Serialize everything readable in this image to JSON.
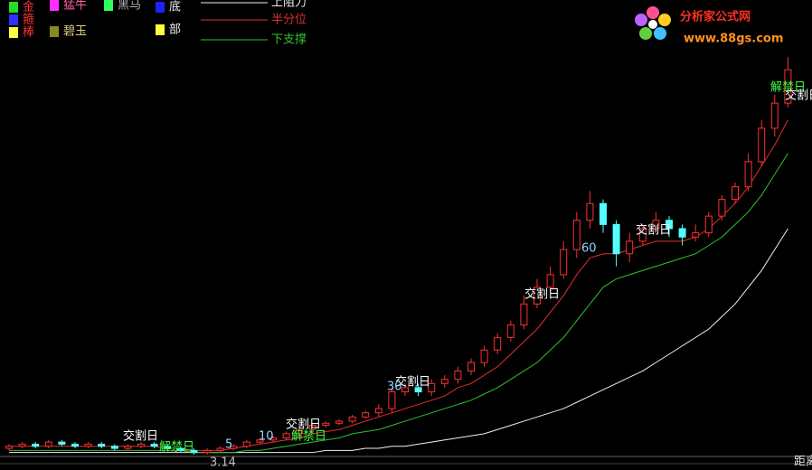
{
  "chart_data": {
    "type": "candlestick",
    "ylim": [
      0,
      100
    ],
    "up_color": "#ff3030",
    "down_color": "#54ffff",
    "open": [
      1.5,
      2,
      2.5,
      2,
      3,
      2.5,
      2,
      2.5,
      2,
      1.5,
      2,
      2.5,
      2,
      1.5,
      1,
      0.5,
      1,
      1.5,
      2,
      3,
      3.5,
      4,
      5,
      6,
      7,
      7.5,
      8,
      9,
      10,
      11,
      15,
      16,
      15,
      17,
      18,
      20,
      22,
      25,
      28,
      31,
      36,
      40,
      43,
      49,
      56,
      60,
      55,
      48,
      51,
      54,
      56,
      54,
      52,
      53,
      57,
      61,
      64,
      70,
      78,
      84
    ],
    "high": [
      2.5,
      3,
      3,
      3.5,
      3.5,
      3,
      3,
      3,
      2.5,
      2.5,
      3,
      3,
      2.5,
      2,
      1.5,
      1.5,
      2,
      2.5,
      3.5,
      4,
      4.5,
      5.5,
      6.5,
      7.5,
      8,
      8.5,
      9.5,
      10.5,
      12,
      16,
      17,
      17,
      18,
      19,
      21,
      23,
      26,
      29,
      32,
      38,
      42,
      45,
      51,
      58,
      63,
      61,
      56,
      53,
      55,
      58,
      57,
      55,
      55,
      58,
      62,
      65,
      72,
      80,
      86,
      95
    ],
    "low": [
      1,
      1.5,
      1.5,
      1.5,
      2,
      1.5,
      1.5,
      1.5,
      1,
      1,
      1.5,
      1.5,
      1,
      0.5,
      0,
      0,
      0.5,
      1,
      1.5,
      2.5,
      3,
      3.5,
      4.5,
      5.5,
      6.5,
      7,
      7.5,
      8.5,
      9,
      10,
      14,
      14,
      14,
      16,
      17,
      19,
      21,
      24,
      27,
      30,
      35,
      39,
      42,
      47,
      54,
      53,
      45,
      46,
      50,
      53,
      52,
      50,
      51,
      52,
      56,
      60,
      63,
      69,
      76,
      83
    ],
    "close": [
      2,
      2.5,
      2,
      3,
      2.5,
      2,
      2.5,
      2,
      1.5,
      2,
      2.5,
      2,
      1.5,
      1,
      0.5,
      1,
      1.5,
      2,
      3,
      3.5,
      4,
      5,
      6,
      7,
      7.5,
      8,
      9,
      10,
      11,
      15,
      16,
      15,
      17,
      18,
      20,
      22,
      25,
      28,
      31,
      36,
      40,
      43,
      49,
      56,
      60,
      55,
      48,
      51,
      54,
      56,
      54,
      52,
      53,
      57,
      61,
      64,
      70,
      78,
      84,
      92
    ],
    "series": [
      {
        "name": "上阻力",
        "color": "#f0f0f0",
        "values": [
          0.5,
          0.5,
          0.5,
          0.5,
          0.5,
          0.5,
          0.5,
          0.5,
          0.5,
          0.5,
          0.5,
          0.5,
          0.5,
          0.5,
          0.5,
          0.5,
          0.5,
          0.5,
          0.5,
          0.5,
          0.5,
          0.5,
          0.5,
          0.5,
          1,
          1,
          1,
          1.5,
          1.5,
          2,
          2,
          2.5,
          3,
          3.5,
          4,
          4.5,
          5,
          6,
          7,
          8,
          9,
          10,
          11,
          12.5,
          14,
          15.5,
          17,
          18.5,
          20,
          22,
          24,
          26,
          28,
          30,
          33,
          36,
          40,
          44,
          49,
          54
        ]
      },
      {
        "name": "半分位",
        "color": "#e03030",
        "values": [
          2,
          2,
          2,
          2,
          2,
          2,
          2,
          2,
          2,
          2,
          2,
          2,
          1.5,
          1.5,
          1,
          1,
          1,
          1.5,
          2,
          2.5,
          3,
          3.5,
          4,
          5,
          5.5,
          6,
          7,
          8,
          9,
          10,
          11,
          12,
          13,
          14,
          16,
          17,
          19,
          21,
          24,
          27,
          30,
          34,
          38,
          43,
          47,
          48,
          48,
          49,
          50,
          51,
          51,
          51,
          52,
          54,
          57,
          60,
          64,
          69,
          74,
          80
        ]
      },
      {
        "name": "下支撑",
        "color": "#30c030",
        "values": [
          1,
          1,
          1,
          1,
          1,
          1,
          1,
          1,
          1,
          1,
          1,
          1,
          1,
          1,
          0.5,
          0.5,
          0.5,
          0.5,
          1,
          1,
          1.5,
          2,
          2.5,
          3,
          3.5,
          4,
          5,
          5.5,
          6,
          7,
          8,
          9,
          10,
          11,
          12,
          13,
          14.5,
          16,
          18,
          20,
          22,
          25,
          28,
          32,
          36,
          40,
          42,
          43,
          44,
          45,
          46,
          47,
          48,
          50,
          52,
          55,
          58,
          62,
          67,
          72
        ]
      }
    ],
    "signals": [
      {
        "label": "金",
        "color": "#22dd22"
      },
      {
        "label": "箍",
        "color": "#3030ff"
      },
      {
        "label": "棒",
        "color": "#ffff40"
      },
      {
        "label": "猛牛",
        "color": "#ff30ff"
      },
      {
        "label": "碧玉",
        "color": "#8a8a20"
      },
      {
        "label": "黑马",
        "color": "#30ff60"
      },
      {
        "label": "底",
        "color": "#2020ff"
      },
      {
        "label": "部",
        "color": "#ffff40"
      }
    ],
    "annotations": [
      "交割日",
      "解禁日",
      "交割日",
      "解禁日",
      "交割日",
      "交割日",
      "交割日",
      "解禁日",
      "交割日"
    ],
    "markers": [
      5,
      10,
      30,
      60
    ],
    "footer": [
      "3.14",
      "距离"
    ],
    "logo": {
      "name": "分析家公式网",
      "url": "www.88gs.com"
    }
  }
}
